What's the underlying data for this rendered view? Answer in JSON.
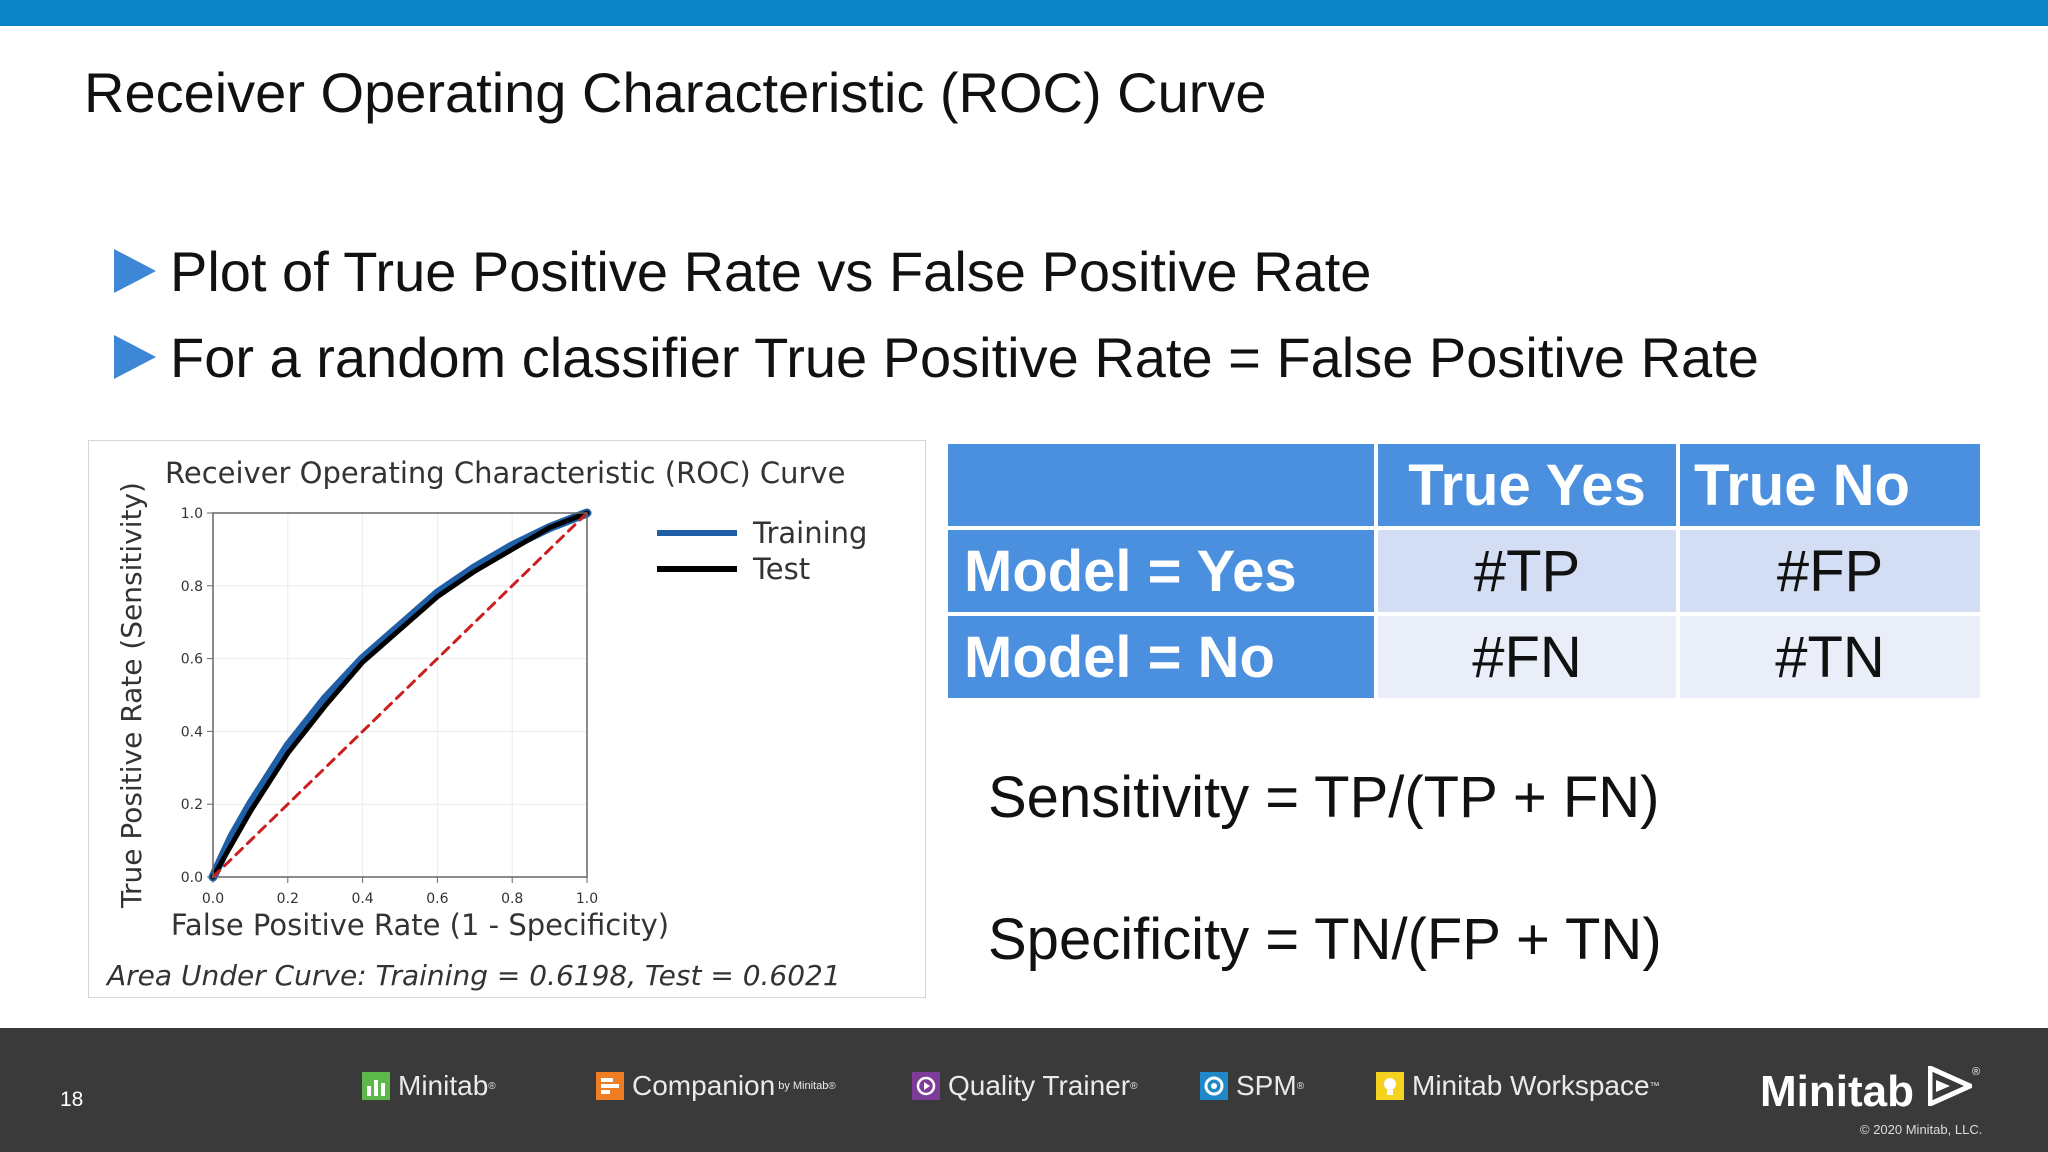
{
  "slide": {
    "title": "Receiver Operating Characteristic (ROC) Curve",
    "bullets": [
      "Plot of True Positive Rate vs False Positive Rate",
      "For a random classifier True Positive Rate = False Positive Rate"
    ]
  },
  "chart_data": {
    "type": "line",
    "title": "Receiver Operating Characteristic (ROC) Curve",
    "xlabel": "False Positive Rate (1 - Specificity)",
    "ylabel": "True Positive Rate (Sensitivity)",
    "xlim": [
      0,
      1
    ],
    "ylim": [
      0,
      1
    ],
    "xticks": [
      "0.0",
      "0.2",
      "0.4",
      "0.6",
      "0.8",
      "1.0"
    ],
    "yticks": [
      "0.0",
      "0.2",
      "0.4",
      "0.6",
      "0.8",
      "1.0"
    ],
    "grid": true,
    "legend_position": "outside-right",
    "footnote": "Area Under Curve: Training = 0.6198, Test = 0.6021",
    "series": [
      {
        "name": "Training",
        "color": "#1f5fa8",
        "x": [
          0,
          0.05,
          0.1,
          0.2,
          0.3,
          0.4,
          0.5,
          0.6,
          0.7,
          0.8,
          0.9,
          1.0
        ],
        "y": [
          0,
          0.11,
          0.2,
          0.36,
          0.49,
          0.6,
          0.69,
          0.78,
          0.85,
          0.91,
          0.96,
          1.0
        ]
      },
      {
        "name": "Test",
        "color": "#000000",
        "x": [
          0,
          0.05,
          0.1,
          0.2,
          0.3,
          0.4,
          0.5,
          0.6,
          0.7,
          0.8,
          0.9,
          1.0
        ],
        "y": [
          0,
          0.09,
          0.18,
          0.34,
          0.47,
          0.59,
          0.68,
          0.77,
          0.84,
          0.9,
          0.96,
          1.0
        ]
      },
      {
        "name": "",
        "style": "dashed",
        "color": "#cc1f1f",
        "x": [
          0,
          1
        ],
        "y": [
          0,
          1
        ]
      }
    ]
  },
  "confusion_table": {
    "col_headers": [
      "True Yes",
      "True No"
    ],
    "rows": [
      {
        "label": "Model = Yes",
        "cells": [
          "#TP",
          "#FP"
        ]
      },
      {
        "label": "Model = No",
        "cells": [
          "#FN",
          "#TN"
        ]
      }
    ]
  },
  "formulas": {
    "sensitivity": "Sensitivity = TP/(TP + FN)",
    "specificity": "Specificity = TN/(FP + TN)"
  },
  "footer": {
    "page_number": "18",
    "products": [
      {
        "name": "Minitab",
        "mark": "®",
        "icon": "minitab-bars-icon",
        "color": "#5cb84a"
      },
      {
        "name": "Companion",
        "by": "by Minitab",
        "mark": "®",
        "icon": "companion-icon",
        "color": "#ef7d22"
      },
      {
        "name": "Quality Trainer",
        "mark": "®",
        "icon": "quality-trainer-icon",
        "color": "#7d3c98"
      },
      {
        "name": "SPM",
        "mark": "®",
        "icon": "spm-icon",
        "color": "#1e88c8"
      },
      {
        "name": "Minitab Workspace",
        "mark": "™",
        "icon": "workspace-icon",
        "color": "#f4d21f"
      }
    ],
    "logo_text": "Minitab",
    "logo_mark": "®",
    "copyright": "© 2020 Minitab, LLC."
  }
}
